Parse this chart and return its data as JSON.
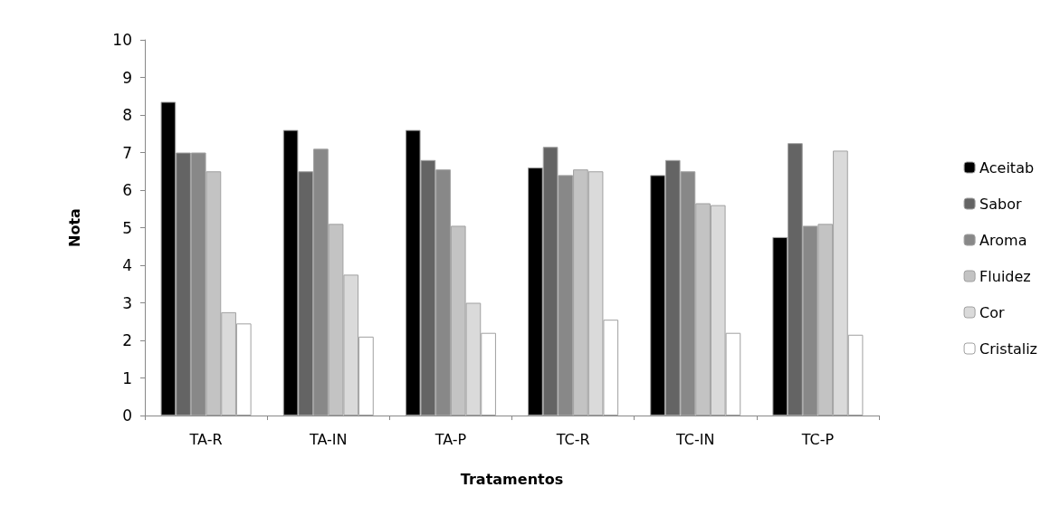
{
  "chart_data": {
    "type": "bar",
    "xlabel": "Tratamentos",
    "ylabel": "Nota",
    "categories": [
      "TA-R",
      "TA-IN",
      "TA-P",
      "TC-R",
      "TC-IN",
      "TC-P"
    ],
    "series": [
      {
        "name": "Aceitab",
        "color": "#000000",
        "values": [
          8.35,
          7.6,
          7.6,
          6.6,
          6.4,
          4.75
        ]
      },
      {
        "name": "Sabor",
        "color": "#646464",
        "values": [
          7.0,
          6.5,
          6.8,
          7.15,
          6.8,
          7.25
        ]
      },
      {
        "name": "Aroma",
        "color": "#888888",
        "values": [
          7.0,
          7.1,
          6.55,
          6.4,
          6.5,
          5.05
        ]
      },
      {
        "name": "Fluidez",
        "color": "#c3c3c3",
        "values": [
          6.5,
          5.1,
          5.05,
          6.55,
          5.65,
          5.1
        ]
      },
      {
        "name": "Cor",
        "color": "#dadada",
        "values": [
          2.75,
          3.75,
          3.0,
          6.5,
          5.6,
          7.05
        ]
      },
      {
        "name": "Cristaliz",
        "color": "#ffffff",
        "values": [
          2.45,
          2.1,
          2.2,
          2.55,
          2.2,
          2.15
        ]
      }
    ],
    "ylim": [
      0,
      10
    ],
    "yticks": [
      0,
      1,
      2,
      3,
      4,
      5,
      6,
      7,
      8,
      9,
      10
    ],
    "grid": false,
    "legend": "right"
  }
}
